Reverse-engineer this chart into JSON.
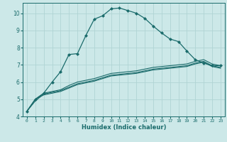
{
  "xlabel": "Humidex (Indice chaleur)",
  "bg_color": "#cce8e8",
  "grid_color": "#b0d4d4",
  "line_color": "#1a6b6b",
  "xlim": [
    -0.5,
    23.5
  ],
  "ylim": [
    4,
    10.6
  ],
  "yticks": [
    4,
    5,
    6,
    7,
    8,
    9,
    10
  ],
  "xticks": [
    0,
    1,
    2,
    3,
    4,
    5,
    6,
    7,
    8,
    9,
    10,
    11,
    12,
    13,
    14,
    15,
    16,
    17,
    18,
    19,
    20,
    21,
    22,
    23
  ],
  "curve1_x": [
    0,
    1,
    2,
    3,
    4,
    5,
    6,
    7,
    8,
    9,
    10,
    11,
    12,
    13,
    14,
    15,
    16,
    17,
    18,
    19,
    20,
    21,
    22,
    23
  ],
  "curve1_y": [
    4.3,
    5.0,
    5.35,
    6.0,
    6.6,
    7.6,
    7.65,
    8.7,
    9.65,
    9.85,
    10.25,
    10.3,
    10.15,
    10.0,
    9.7,
    9.25,
    8.85,
    8.5,
    8.35,
    7.8,
    7.3,
    7.1,
    6.95,
    6.95
  ],
  "curve2_x": [
    0,
    1,
    2,
    3,
    4,
    5,
    6,
    7,
    8,
    9,
    10,
    11,
    12,
    13,
    14,
    15,
    16,
    17,
    18,
    19,
    20,
    21,
    22,
    23
  ],
  "curve2_y": [
    4.3,
    5.0,
    5.35,
    5.45,
    5.55,
    5.8,
    6.0,
    6.1,
    6.2,
    6.35,
    6.5,
    6.55,
    6.6,
    6.65,
    6.75,
    6.85,
    6.9,
    6.95,
    7.0,
    7.05,
    7.2,
    7.3,
    7.05,
    6.95
  ],
  "curve3_x": [
    0,
    1,
    2,
    3,
    4,
    5,
    6,
    7,
    8,
    9,
    10,
    11,
    12,
    13,
    14,
    15,
    16,
    17,
    18,
    19,
    20,
    21,
    22,
    23
  ],
  "curve3_y": [
    4.3,
    5.0,
    5.25,
    5.35,
    5.45,
    5.65,
    5.85,
    5.95,
    6.05,
    6.2,
    6.35,
    6.4,
    6.45,
    6.5,
    6.6,
    6.7,
    6.75,
    6.8,
    6.85,
    6.9,
    7.05,
    7.15,
    6.9,
    6.8
  ],
  "curve4_x": [
    0,
    1,
    2,
    3,
    4,
    5,
    6,
    7,
    8,
    9,
    10,
    11,
    12,
    13,
    14,
    15,
    16,
    17,
    18,
    19,
    20,
    21,
    22,
    23
  ],
  "curve4_y": [
    4.3,
    4.9,
    5.3,
    5.4,
    5.5,
    5.7,
    5.9,
    6.0,
    6.1,
    6.25,
    6.4,
    6.45,
    6.5,
    6.55,
    6.65,
    6.75,
    6.8,
    6.85,
    6.9,
    6.95,
    7.1,
    7.2,
    6.95,
    6.85
  ]
}
